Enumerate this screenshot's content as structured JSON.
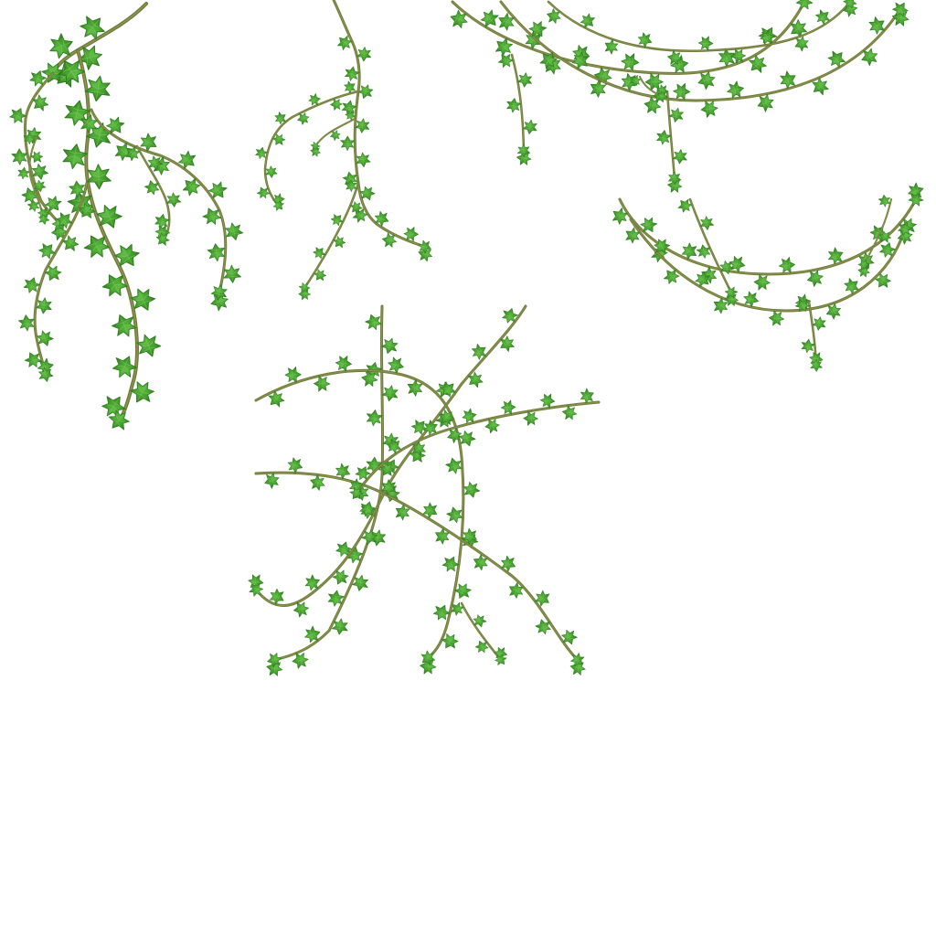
{
  "sprite_sheet": {
    "background": "#ffffff",
    "colors": {
      "stem": "#6f7a3a",
      "stem_highlight": "#97a25a",
      "leaf": "#3f9a2a",
      "leaf_light": "#62be47",
      "leaf_dark": "#2c7a1c",
      "leaf_vein": "#8fd36a"
    },
    "sprites": [
      {
        "name": "hanging-ivy-cluster-large",
        "kind": "hanging vine cluster"
      },
      {
        "name": "hanging-ivy-cluster-small",
        "kind": "hanging vine cluster"
      },
      {
        "name": "ivy-garland-double-top",
        "kind": "drooping garland"
      },
      {
        "name": "ivy-garland-double-right",
        "kind": "drooping garland"
      },
      {
        "name": "crossed-ivy-branches",
        "kind": "crossed vine branches"
      }
    ]
  }
}
